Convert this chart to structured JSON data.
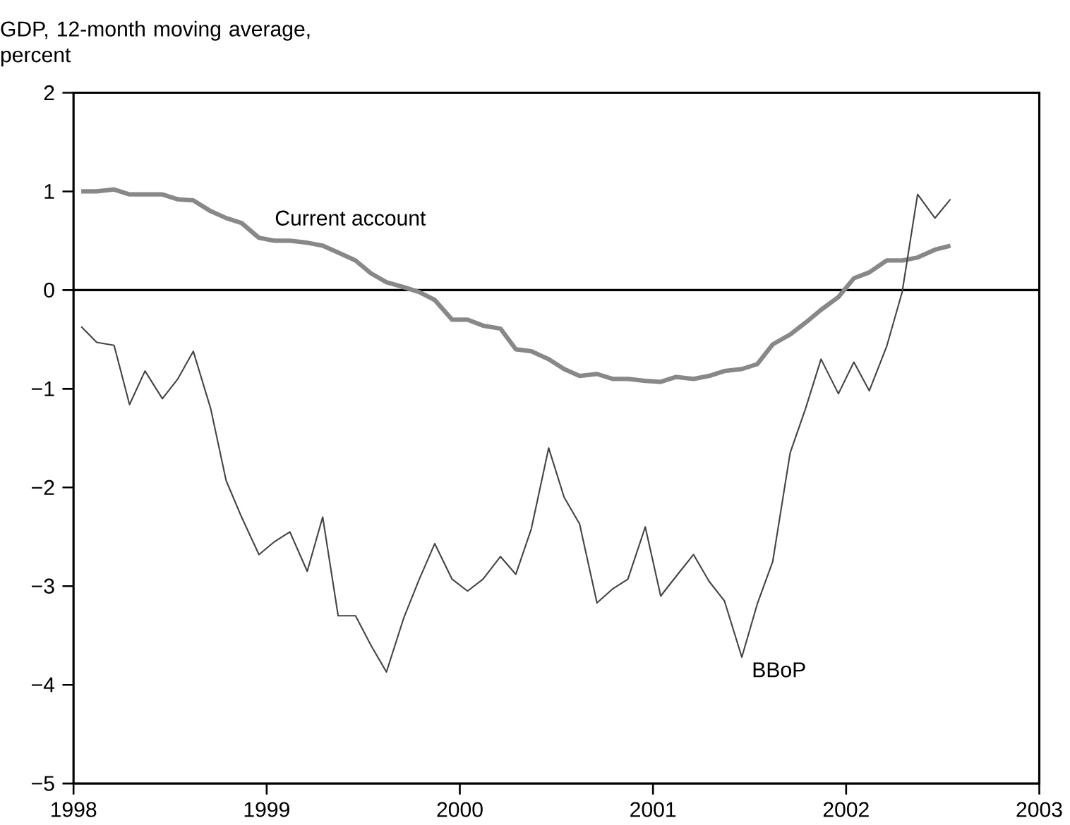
{
  "chart_data": {
    "type": "line",
    "ylabel": "GDP, 12-month moving average, percent",
    "xlim": [
      1998,
      2003
    ],
    "ylim": [
      -5,
      2
    ],
    "xticks": [
      1998,
      1999,
      2000,
      2001,
      2002,
      2003
    ],
    "yticks": [
      {
        "value": -5,
        "label": "−5"
      },
      {
        "value": -4,
        "label": "−4"
      },
      {
        "value": -3,
        "label": "−3"
      },
      {
        "value": -2,
        "label": "−2"
      },
      {
        "value": -1,
        "label": "−1"
      },
      0,
      1,
      2
    ],
    "x": [
      1998.04,
      1998.12,
      1998.21,
      1998.29,
      1998.37,
      1998.46,
      1998.54,
      1998.62,
      1998.71,
      1998.79,
      1998.87,
      1998.96,
      1999.04,
      1999.12,
      1999.21,
      1999.29,
      1999.37,
      1999.46,
      1999.54,
      1999.62,
      1999.71,
      1999.79,
      1999.87,
      1999.96,
      2000.04,
      2000.12,
      2000.21,
      2000.29,
      2000.37,
      2000.46,
      2000.54,
      2000.62,
      2000.71,
      2000.79,
      2000.87,
      2000.96,
      2001.04,
      2001.12,
      2001.21,
      2001.29,
      2001.37,
      2001.46,
      2001.54,
      2001.62,
      2001.71,
      2001.79,
      2001.87,
      2001.96,
      2002.04,
      2002.12,
      2002.21,
      2002.29,
      2002.37,
      2002.46,
      2002.54
    ],
    "series": [
      {
        "name": "Current account",
        "color": "#888888",
        "values": [
          1.0,
          1.0,
          1.02,
          0.97,
          0.97,
          0.97,
          0.92,
          0.91,
          0.8,
          0.73,
          0.68,
          0.53,
          0.5,
          0.5,
          0.48,
          0.45,
          0.38,
          0.3,
          0.17,
          0.08,
          0.03,
          -0.02,
          -0.1,
          -0.3,
          -0.3,
          -0.36,
          -0.39,
          -0.6,
          -0.62,
          -0.7,
          -0.8,
          -0.87,
          -0.85,
          -0.9,
          -0.9,
          -0.92,
          -0.93,
          -0.88,
          -0.9,
          -0.87,
          -0.82,
          -0.8,
          -0.75,
          -0.55,
          -0.45,
          -0.33,
          -0.2,
          -0.07,
          0.12,
          0.18,
          0.3,
          0.3,
          0.33,
          0.41,
          0.45
        ]
      },
      {
        "name": "BBoP",
        "color": "#444444",
        "values": [
          -0.37,
          -0.53,
          -0.56,
          -1.16,
          -0.82,
          -1.1,
          -0.9,
          -0.62,
          -1.2,
          -1.93,
          -2.3,
          -2.68,
          -2.55,
          -2.45,
          -2.85,
          -2.3,
          -3.3,
          -3.3,
          -3.6,
          -3.87,
          -3.32,
          -2.93,
          -2.57,
          -2.93,
          -3.05,
          -2.93,
          -2.7,
          -2.88,
          -2.42,
          -1.6,
          -2.1,
          -2.37,
          -3.17,
          -3.03,
          -2.93,
          -2.4,
          -3.1,
          -2.9,
          -2.68,
          -2.95,
          -3.15,
          -3.72,
          -3.18,
          -2.75,
          -1.65,
          -1.2,
          -0.7,
          -1.05,
          -0.73,
          -1.02,
          -0.57,
          -0.02,
          0.97,
          0.73,
          0.92
        ]
      }
    ],
    "ref_lines": [
      {
        "axis": "y",
        "value": 0,
        "color": "#000000"
      }
    ],
    "grid": false,
    "legend": false
  }
}
